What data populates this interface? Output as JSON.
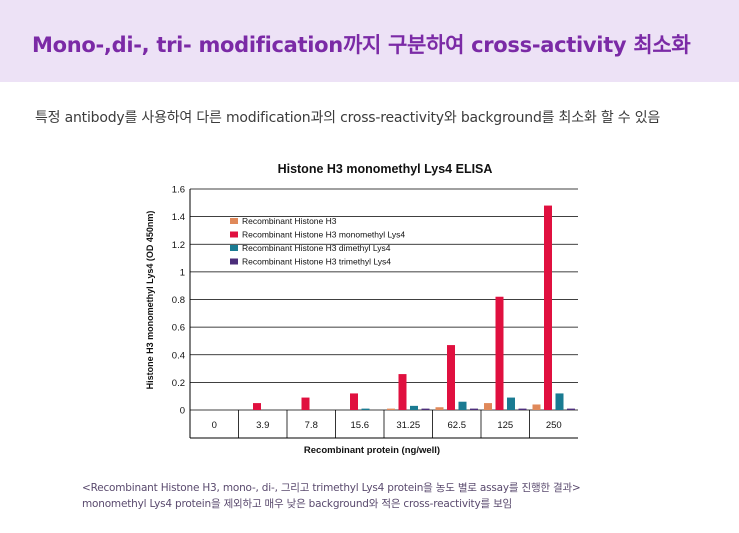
{
  "header": {
    "title": "Mono-,di-, tri- modification까지 구분하여 cross-activity 최소화"
  },
  "subtitle": "특정 antibody를 사용하여 다른 modification과의 cross-reactivity와 background를 최소화 할 수 있음",
  "caption": {
    "line1": "<Recombinant Histone H3, mono-, di-, 그리고 trimethyl Lys4 protein을 농도 별로 assay를 진행한 결과>",
    "line2": "monomethyl Lys4 protein을 제외하고 매우 낮은 background와 적은 cross-reactivity를 보임"
  },
  "chart_data": {
    "type": "bar",
    "title": "Histone H3 monomethyl Lys4 ELISA",
    "xlabel": "Recombinant protein (ng/well)",
    "ylabel": "Histone H3 monomethyl Lys4 (OD 450nm)",
    "ylim": [
      0,
      1.6
    ],
    "yticks": [
      "0",
      "0.2",
      "0.4",
      "0.6",
      "0.8",
      "1",
      "1.2",
      "1.4",
      "1.6"
    ],
    "grid": true,
    "legend_position": "top-left",
    "categories": [
      "0",
      "3.9",
      "7.8",
      "15.6",
      "31.25",
      "62.5",
      "125",
      "250"
    ],
    "series": [
      {
        "name": "Recombinant Histone H3",
        "color": "#e0895a",
        "values": [
          0.0,
          0.0,
          0.0,
          0.0,
          0.01,
          0.02,
          0.05,
          0.04
        ]
      },
      {
        "name": "Recombinant Histone H3 monomethyl Lys4",
        "color": "#e0103f",
        "values": [
          0.0,
          0.05,
          0.09,
          0.12,
          0.26,
          0.47,
          0.82,
          1.48
        ]
      },
      {
        "name": "Recombinant Histone H3 dimethyl Lys4",
        "color": "#1a7b92",
        "values": [
          0.0,
          0.0,
          0.0,
          0.01,
          0.03,
          0.06,
          0.09,
          0.12
        ]
      },
      {
        "name": "Recombinant Histone H3 trimethyl Lys4",
        "color": "#4b2d7a",
        "values": [
          0.0,
          0.0,
          0.0,
          0.0,
          0.01,
          0.01,
          0.01,
          0.01
        ]
      }
    ]
  }
}
